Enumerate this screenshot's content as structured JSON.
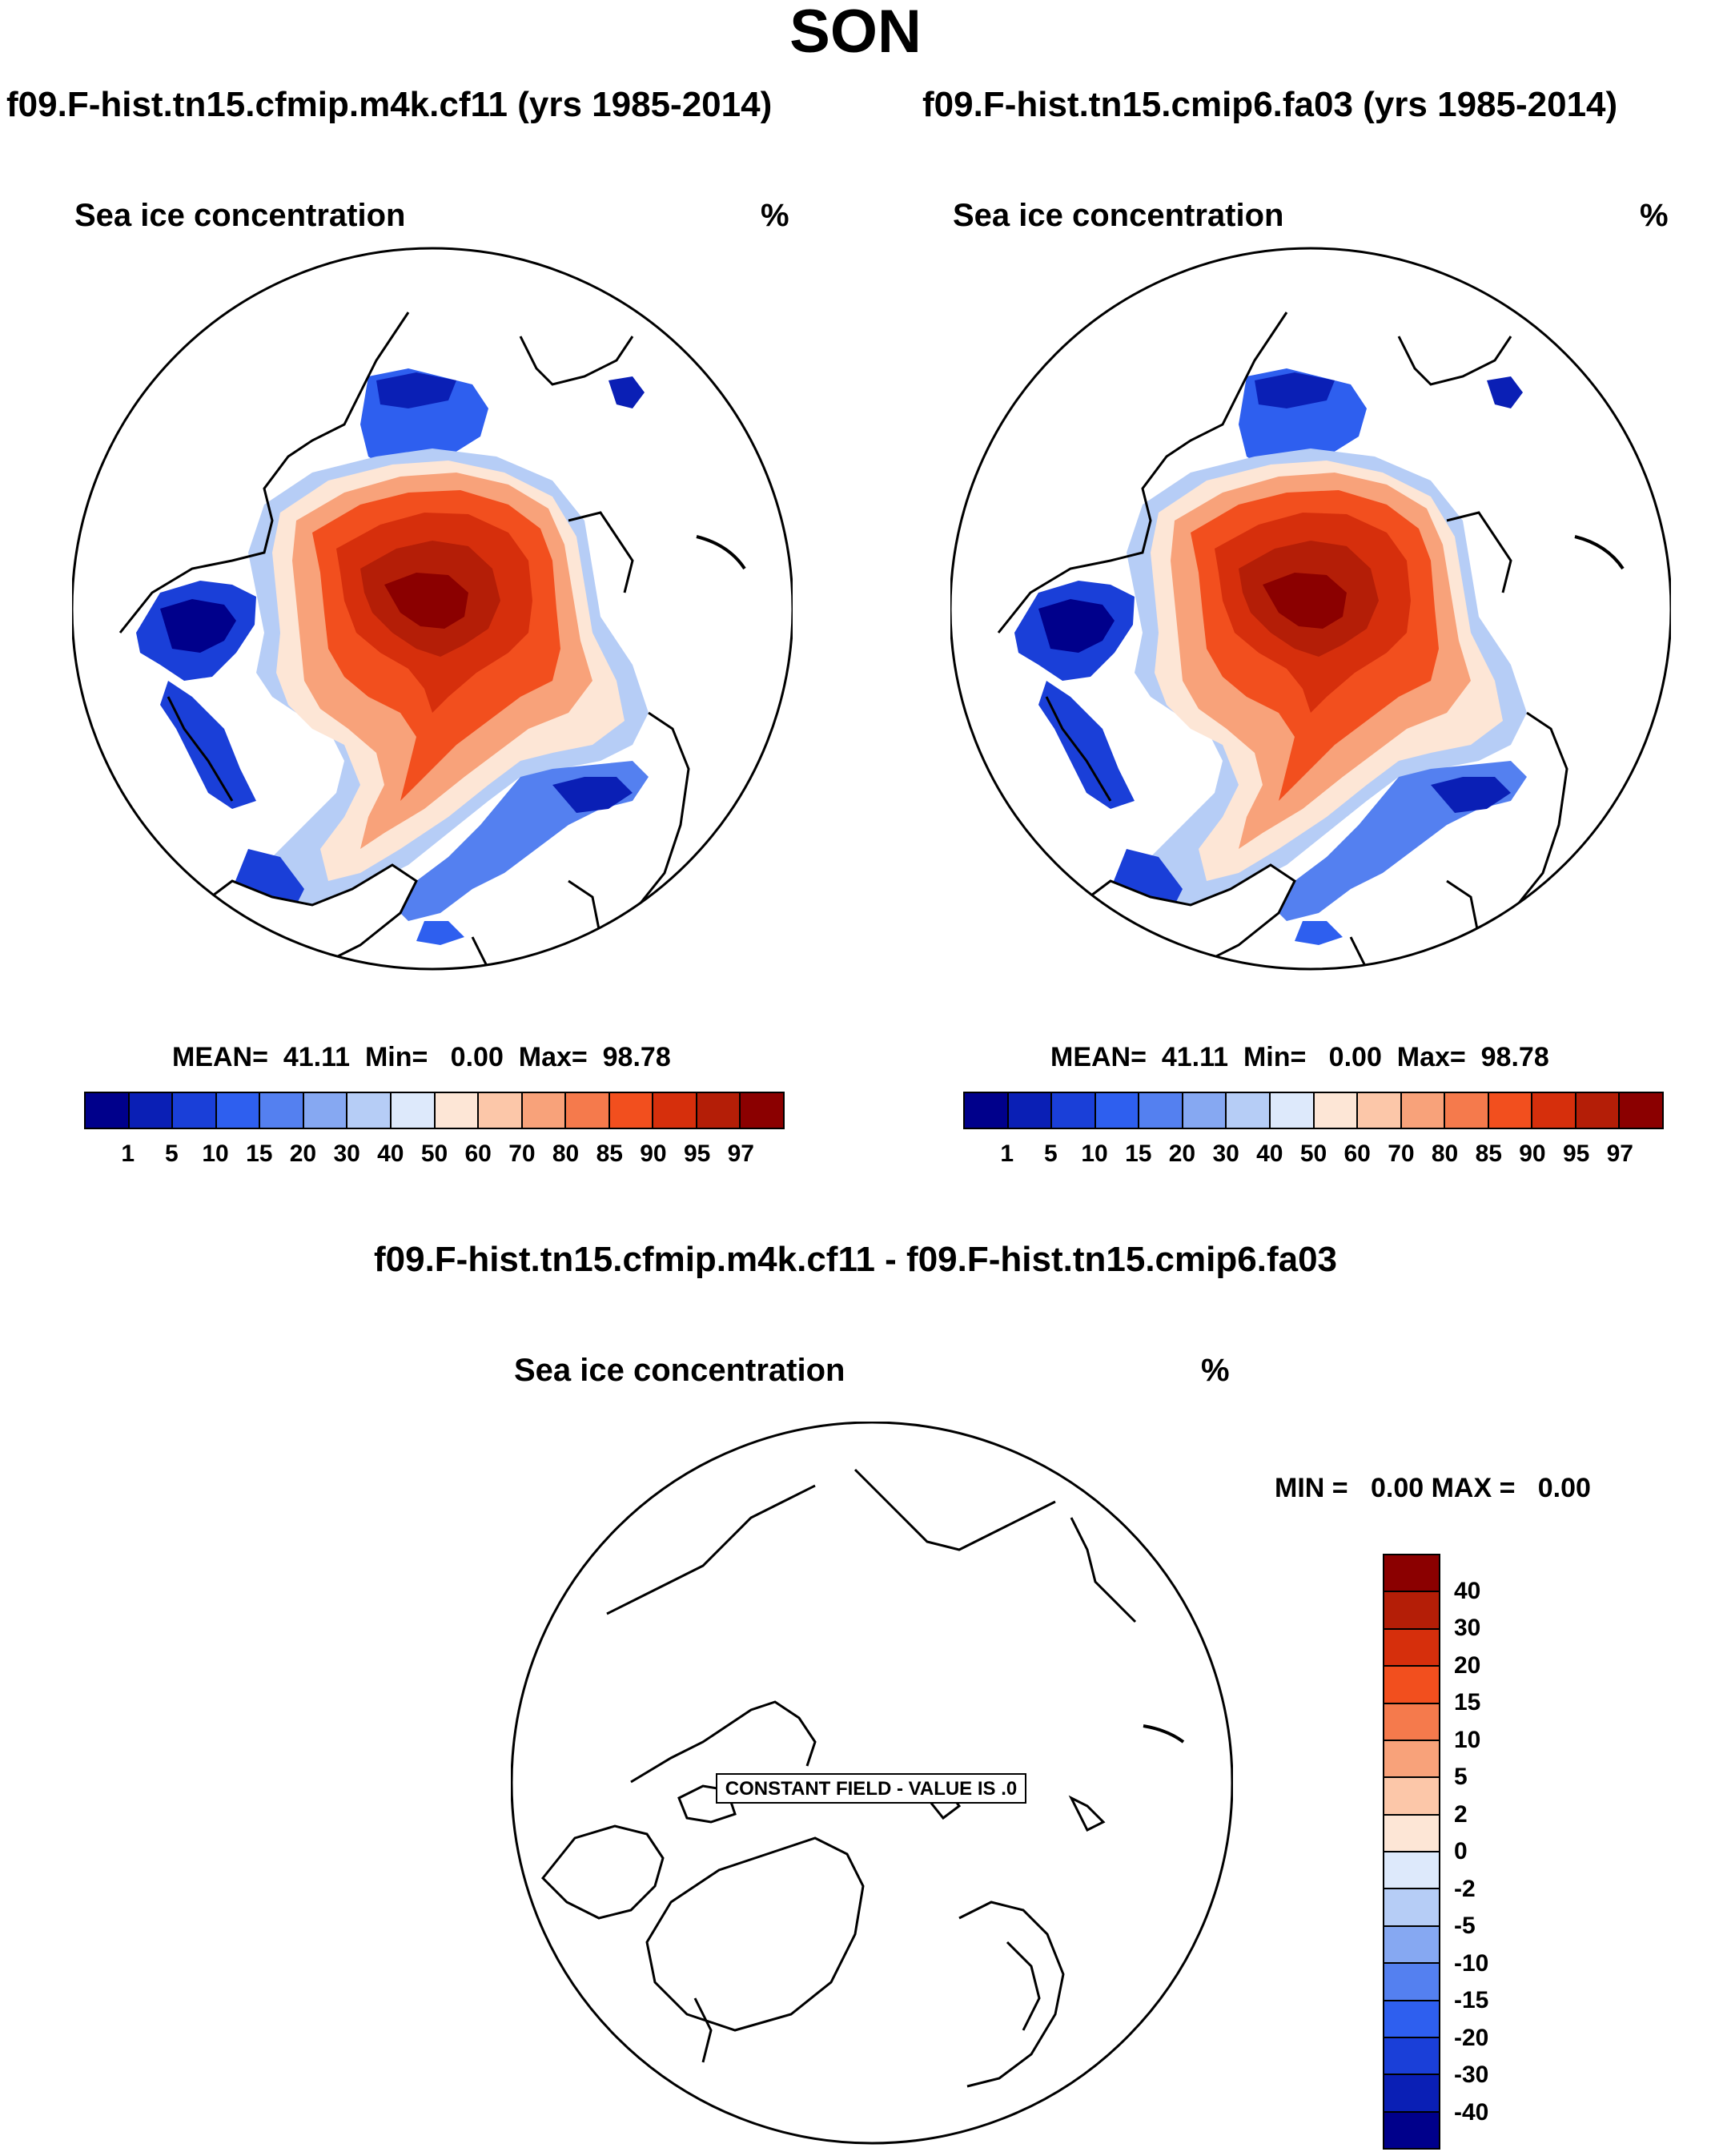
{
  "figure": {
    "title": "SON"
  },
  "panels": [
    {
      "case_title": "f09.F-hist.tn15.cfmip.m4k.cf11 (yrs 1985-2014)",
      "field_title": "Sea ice concentration",
      "units": "%",
      "stats": "MEAN=  41.11  Min=   0.00  Max=  98.78",
      "stats_values": {
        "mean": 41.11,
        "min": 0.0,
        "max": 98.78
      }
    },
    {
      "case_title": "f09.F-hist.tn15.cmip6.fa03 (yrs 1985-2014)",
      "field_title": "Sea ice concentration",
      "units": "%",
      "stats": "MEAN=  41.11  Min=   0.00  Max=  98.78",
      "stats_values": {
        "mean": 41.11,
        "min": 0.0,
        "max": 98.78
      }
    }
  ],
  "diff_panel": {
    "case_title": "f09.F-hist.tn15.cfmip.m4k.cf11 - f09.F-hist.tn15.cmip6.fa03",
    "field_title": "Sea ice concentration",
    "units": "%",
    "stats": "MIN =   0.00 MAX =   0.00",
    "stats_values": {
      "min": 0.0,
      "max": 0.0
    },
    "annotation": "CONSTANT FIELD - VALUE IS .0"
  },
  "colorbar_abs": {
    "levels": [
      "1",
      "5",
      "10",
      "15",
      "20",
      "30",
      "40",
      "50",
      "60",
      "70",
      "80",
      "85",
      "90",
      "95",
      "97"
    ],
    "colors": [
      "#00008b",
      "#0a1fb5",
      "#1a3fd8",
      "#2e5fef",
      "#5480f0",
      "#86a8f2",
      "#b6cdf6",
      "#dde9fb",
      "#fde6d6",
      "#fcc7a9",
      "#f8a27a",
      "#f57a4c",
      "#f24f1e",
      "#d62f0c",
      "#b41e07",
      "#8b0000"
    ]
  },
  "colorbar_diff": {
    "levels": [
      "40",
      "30",
      "20",
      "15",
      "10",
      "5",
      "2",
      "0",
      "-2",
      "-5",
      "-10",
      "-15",
      "-20",
      "-30",
      "-40"
    ],
    "colors": [
      "#8b0000",
      "#b41e07",
      "#d62f0c",
      "#f24f1e",
      "#f57a4c",
      "#f8a27a",
      "#fcc7a9",
      "#fde6d6",
      "#dde9fb",
      "#b6cdf6",
      "#86a8f2",
      "#5480f0",
      "#2e5fef",
      "#1a3fd8",
      "#0a1fb5",
      "#00008b"
    ]
  }
}
